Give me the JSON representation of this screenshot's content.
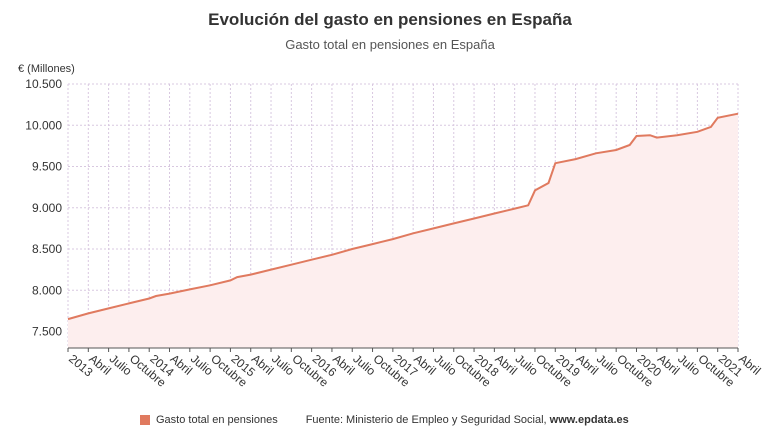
{
  "colors": {
    "line": "#e07a5f",
    "fill": "#fdeeee",
    "grid": "#d8c8e0",
    "axis": "#555555"
  },
  "footer": {
    "legend_label": "Gasto total en pensiones",
    "source_prefix": "Fuente: Ministerio de Empleo y Seguridad Social, ",
    "source_url": "www.epdata.es"
  },
  "chart_data": {
    "type": "area",
    "title": "Evolución del gasto en pensiones en España",
    "subtitle": "Gasto total en pensiones en España",
    "ylabel": "€ (Millones)",
    "ylim": [
      7300,
      10500
    ],
    "yticks": [
      7500,
      8000,
      8500,
      9000,
      9500,
      10000,
      10500
    ],
    "ytick_labels": [
      "7.500",
      "8.000",
      "8.500",
      "9.000",
      "9.500",
      "10.000",
      "10.500"
    ],
    "x_range": [
      "2013-01",
      "2021-04"
    ],
    "xticks": [
      "2013-01",
      "2013-04",
      "2013-07",
      "2013-10",
      "2014-01",
      "2014-04",
      "2014-07",
      "2014-10",
      "2015-01",
      "2015-04",
      "2015-07",
      "2015-10",
      "2016-01",
      "2016-04",
      "2016-07",
      "2016-10",
      "2017-01",
      "2017-04",
      "2017-07",
      "2017-10",
      "2018-01",
      "2018-04",
      "2018-07",
      "2018-10",
      "2019-01",
      "2019-04",
      "2019-07",
      "2019-10",
      "2020-01",
      "2020-04",
      "2020-07",
      "2020-10",
      "2021-01",
      "2021-04"
    ],
    "xtick_labels": [
      "2013",
      "Abril",
      "Julio",
      "Octubre",
      "2014",
      "Abril",
      "Julio",
      "Octubre",
      "2015",
      "Abril",
      "Julio",
      "Octubre",
      "2016",
      "Abril",
      "Julio",
      "Octubre",
      "2017",
      "Abril",
      "Julio",
      "Octubre",
      "2018",
      "Abril",
      "Julio",
      "Octubre",
      "2019",
      "Abril",
      "Julio",
      "Octubre",
      "2020",
      "Abril",
      "Julio",
      "Octubre",
      "2021",
      "Abril"
    ],
    "grid": true,
    "series": [
      {
        "name": "Gasto total en pensiones",
        "x": [
          "2013-01",
          "2013-04",
          "2013-07",
          "2013-10",
          "2014-01",
          "2014-02",
          "2014-04",
          "2014-07",
          "2014-10",
          "2015-01",
          "2015-02",
          "2015-04",
          "2015-07",
          "2015-10",
          "2016-01",
          "2016-04",
          "2016-07",
          "2016-10",
          "2017-01",
          "2017-04",
          "2017-07",
          "2017-10",
          "2018-01",
          "2018-04",
          "2018-07",
          "2018-09",
          "2018-10",
          "2018-12",
          "2019-01",
          "2019-04",
          "2019-07",
          "2019-10",
          "2019-12",
          "2020-01",
          "2020-03",
          "2020-04",
          "2020-07",
          "2020-10",
          "2020-12",
          "2021-01",
          "2021-04"
        ],
        "values": [
          7650,
          7720,
          7780,
          7840,
          7900,
          7930,
          7960,
          8010,
          8060,
          8120,
          8160,
          8190,
          8250,
          8310,
          8370,
          8430,
          8500,
          8560,
          8620,
          8690,
          8750,
          8810,
          8870,
          8930,
          8990,
          9030,
          9210,
          9300,
          9540,
          9590,
          9660,
          9700,
          9760,
          9870,
          9880,
          9850,
          9880,
          9920,
          9980,
          10090,
          10140
        ]
      }
    ]
  }
}
